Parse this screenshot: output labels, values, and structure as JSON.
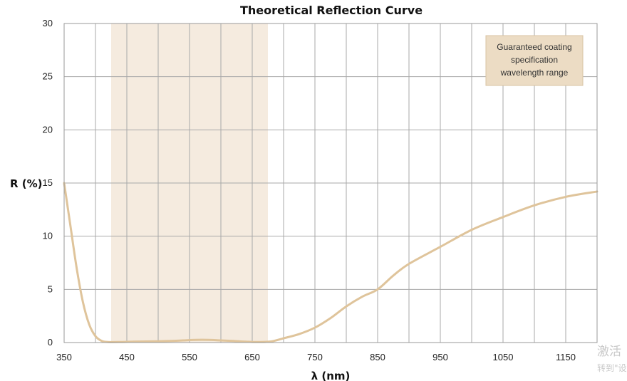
{
  "chart_data": {
    "type": "line",
    "title": "Theoretical Reflection Curve",
    "xlabel": "λ (nm)",
    "ylabel": "R (%)",
    "xlim": [
      350,
      1200
    ],
    "ylim": [
      0,
      30
    ],
    "xticks": [
      350,
      450,
      550,
      650,
      750,
      850,
      950,
      1050,
      1150
    ],
    "yticks": [
      0,
      5,
      10,
      15,
      20,
      25,
      30
    ],
    "grid_step_x": 50,
    "grid": true,
    "highlight_band": {
      "x_start": 425,
      "x_end": 675,
      "color": "#f5ebdf"
    },
    "annotation": {
      "lines": [
        "Guaranteed coating",
        "specification",
        "wavelength range"
      ],
      "placement": "top-right",
      "fill": "#ecdcc4",
      "border": "#d8c3a3"
    },
    "series": [
      {
        "color": "#dfc49b",
        "x": [
          350,
          360,
          370,
          380,
          390,
          400,
          410,
          420,
          440,
          460,
          480,
          500,
          520,
          540,
          560,
          580,
          600,
          620,
          640,
          660,
          680,
          700,
          725,
          750,
          775,
          800,
          825,
          850,
          875,
          900,
          950,
          1000,
          1050,
          1100,
          1150,
          1200
        ],
        "y": [
          15.0,
          11.0,
          7.0,
          3.8,
          1.7,
          0.6,
          0.15,
          0.05,
          0.05,
          0.08,
          0.1,
          0.12,
          0.15,
          0.2,
          0.25,
          0.25,
          0.2,
          0.15,
          0.08,
          0.05,
          0.1,
          0.4,
          0.8,
          1.4,
          2.3,
          3.4,
          4.3,
          5.0,
          6.3,
          7.4,
          9.0,
          10.6,
          11.8,
          12.9,
          13.7,
          14.2
        ]
      }
    ]
  },
  "watermark": {
    "line1": "激活",
    "line2": "转到\"设"
  }
}
